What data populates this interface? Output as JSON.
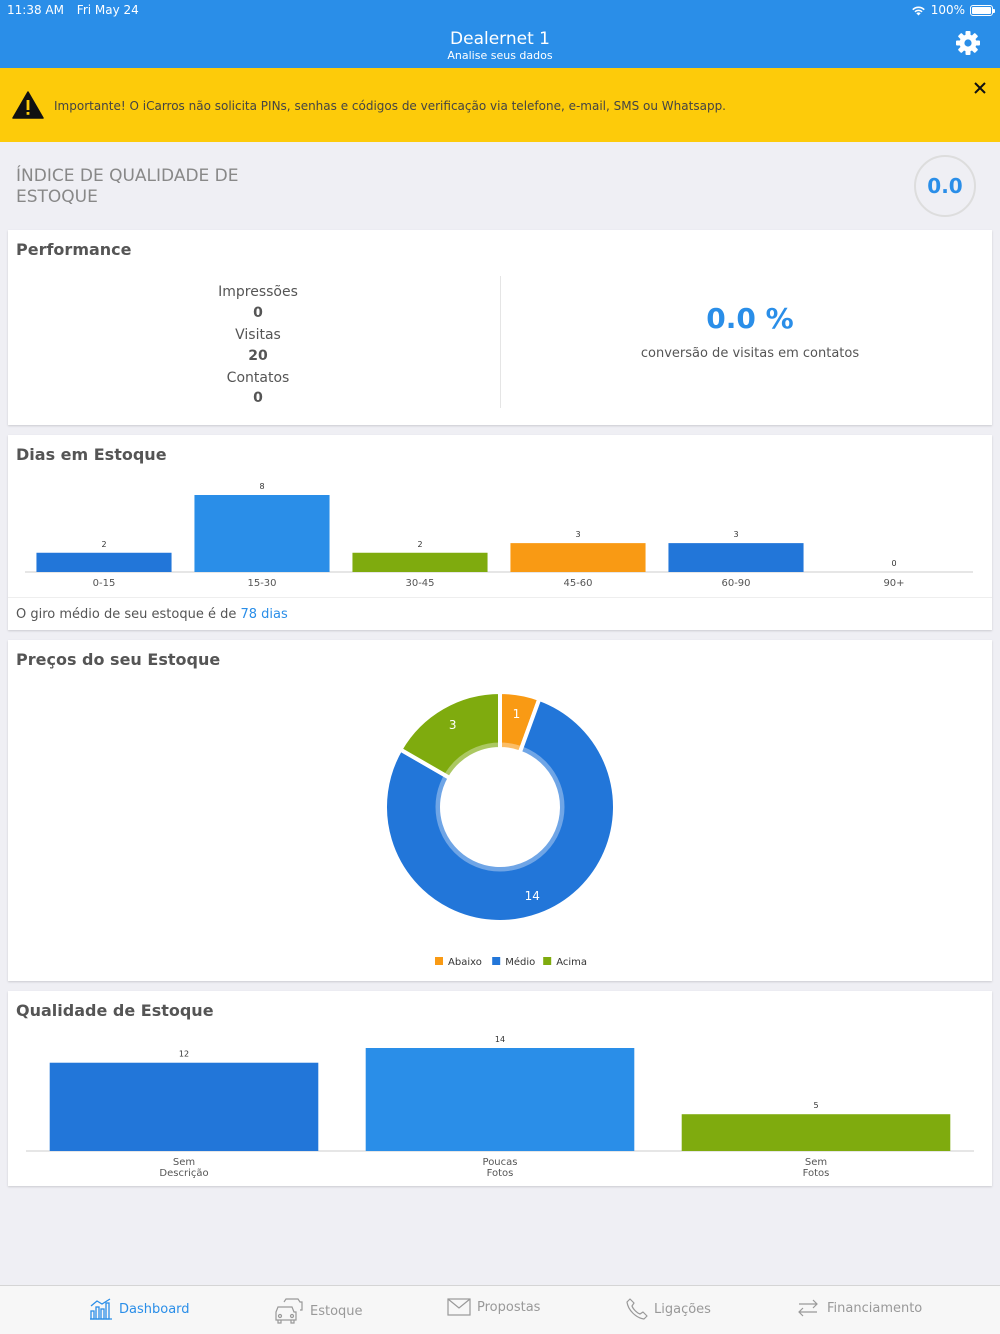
{
  "status_bar": {
    "time": "11:38 AM",
    "date": "Fri May 24",
    "battery": "100%"
  },
  "header": {
    "title": "Dealernet 1",
    "subtitle": "Analise seus dados"
  },
  "banner": {
    "text": "Importante! O iCarros não solicita PINs, senhas e códigos de verificação via telefone, e-mail, SMS ou Whatsapp."
  },
  "quality_index": {
    "title": "ÍNDICE DE QUALIDADE DE ESTOQUE",
    "value": "0.0"
  },
  "performance": {
    "title": "Performance",
    "impressions_label": "Impressões",
    "impressions_value": "0",
    "visits_label": "Visitas",
    "visits_value": "20",
    "contacts_label": "Contatos",
    "contacts_value": "0",
    "conversion_value": "0.0 %",
    "conversion_label": "conversão de visitas em contatos"
  },
  "days_in_stock": {
    "title": "Dias em Estoque",
    "giro_text": "O giro médio de seu estoque é de ",
    "giro_days": "78 dias"
  },
  "prices": {
    "title": "Preços do seu Estoque"
  },
  "stock_quality": {
    "title": "Qualidade de Estoque"
  },
  "colors": {
    "blue_dark": "#2276d9",
    "blue": "#2a8ee8",
    "green": "#7fab0e",
    "orange": "#f99a14",
    "accent": "#2a8ee8"
  },
  "chart_data": [
    {
      "type": "bar",
      "title": "Dias em Estoque",
      "categories": [
        "0-15",
        "15-30",
        "30-45",
        "45-60",
        "60-90",
        "90+"
      ],
      "values": [
        2,
        8,
        2,
        3,
        3,
        0
      ],
      "bar_colors": [
        "#2276d9",
        "#2a8ee8",
        "#7fab0e",
        "#f99a14",
        "#2276d9",
        "#2a8ee8"
      ],
      "ylim": [
        0,
        8
      ]
    },
    {
      "type": "pie",
      "title": "Preços do seu Estoque",
      "series": [
        {
          "name": "Abaixo",
          "value": 1,
          "color": "#f99a14"
        },
        {
          "name": "Médio",
          "value": 14,
          "color": "#2276d9"
        },
        {
          "name": "Acima",
          "value": 3,
          "color": "#7fab0e"
        }
      ],
      "legend": "bottom"
    },
    {
      "type": "bar",
      "title": "Qualidade de Estoque",
      "categories": [
        [
          "Sem",
          "Descrição"
        ],
        [
          "Poucas",
          "Fotos"
        ],
        [
          "Sem",
          "Fotos"
        ]
      ],
      "values": [
        12,
        14,
        5
      ],
      "bar_colors": [
        "#2276d9",
        "#2a8ee8",
        "#7fab0e"
      ],
      "ylim": [
        0,
        14
      ]
    }
  ],
  "tabs": [
    {
      "label": "Dashboard",
      "icon": "dashboard-icon",
      "active": true
    },
    {
      "label": "Estoque",
      "icon": "cars-icon",
      "active": false
    },
    {
      "label": "Propostas",
      "icon": "envelope-icon",
      "active": false
    },
    {
      "label": "Ligações",
      "icon": "phone-icon",
      "active": false
    },
    {
      "label": "Financiamento",
      "icon": "exchange-icon",
      "active": false
    }
  ]
}
